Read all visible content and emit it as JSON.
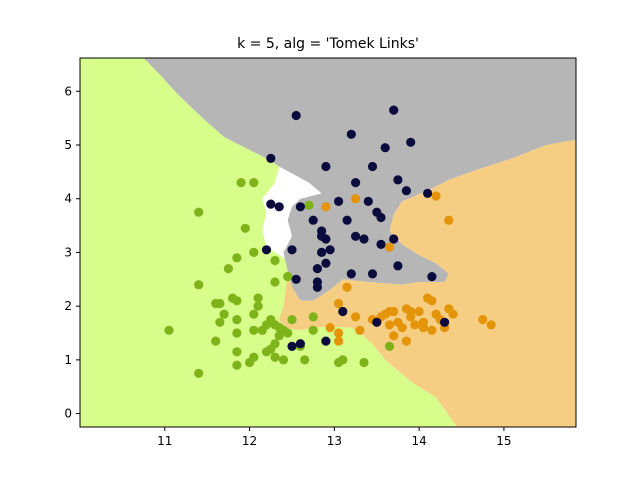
{
  "chart_data": {
    "type": "scatter",
    "title": "k = 5, alg = 'Tomek Links'",
    "xlabel": "",
    "ylabel": "",
    "xlim": [
      10.0,
      15.85
    ],
    "ylim": [
      -0.25,
      6.62
    ],
    "xticks": [
      11,
      12,
      13,
      14,
      15
    ],
    "yticks": [
      0,
      1,
      2,
      3,
      4,
      5,
      6
    ],
    "grid": false,
    "regions": [
      {
        "class": "green",
        "color": "#d7fd8b",
        "polygon": [
          [
            10.0,
            -0.25
          ],
          [
            14.45,
            -0.25
          ],
          [
            14.2,
            0.3
          ],
          [
            13.9,
            0.6
          ],
          [
            13.6,
            1.0
          ],
          [
            13.45,
            1.3
          ],
          [
            13.3,
            1.5
          ],
          [
            13.2,
            1.6
          ],
          [
            12.95,
            1.62
          ],
          [
            12.75,
            1.6
          ],
          [
            12.6,
            1.55
          ],
          [
            12.4,
            1.6
          ],
          [
            12.35,
            1.75
          ],
          [
            12.45,
            1.95
          ],
          [
            12.5,
            2.3
          ],
          [
            12.55,
            2.6
          ],
          [
            12.45,
            2.85
          ],
          [
            12.3,
            3.0
          ],
          [
            12.2,
            3.1
          ],
          [
            12.15,
            3.4
          ],
          [
            12.2,
            3.75
          ],
          [
            12.15,
            4.0
          ],
          [
            12.3,
            4.3
          ],
          [
            12.35,
            4.6
          ],
          [
            12.2,
            4.75
          ],
          [
            11.95,
            4.95
          ],
          [
            11.7,
            5.15
          ],
          [
            11.45,
            5.5
          ],
          [
            11.15,
            5.95
          ],
          [
            10.95,
            6.3
          ],
          [
            10.75,
            6.62
          ],
          [
            10.0,
            6.62
          ]
        ]
      },
      {
        "class": "gray",
        "color": "#b6b6b6",
        "polygon": [
          [
            10.75,
            6.62
          ],
          [
            15.85,
            6.62
          ],
          [
            15.85,
            5.1
          ],
          [
            15.5,
            5.0
          ],
          [
            15.1,
            4.75
          ],
          [
            14.7,
            4.55
          ],
          [
            14.35,
            4.35
          ],
          [
            14.1,
            4.15
          ],
          [
            13.8,
            3.95
          ],
          [
            13.7,
            3.7
          ],
          [
            13.65,
            3.4
          ],
          [
            13.8,
            3.15
          ],
          [
            14.0,
            2.95
          ],
          [
            14.2,
            2.8
          ],
          [
            14.35,
            2.6
          ],
          [
            14.3,
            2.45
          ],
          [
            14.0,
            2.45
          ],
          [
            13.8,
            2.4
          ],
          [
            13.4,
            2.45
          ],
          [
            13.1,
            2.5
          ],
          [
            12.95,
            2.3
          ],
          [
            12.75,
            2.1
          ],
          [
            12.6,
            2.1
          ],
          [
            12.5,
            2.35
          ],
          [
            12.45,
            2.65
          ],
          [
            12.4,
            3.0
          ],
          [
            12.5,
            3.3
          ],
          [
            12.45,
            3.6
          ],
          [
            12.5,
            3.85
          ],
          [
            12.6,
            4.0
          ],
          [
            12.85,
            4.1
          ],
          [
            12.7,
            4.3
          ],
          [
            12.35,
            4.6
          ],
          [
            12.2,
            4.75
          ],
          [
            11.95,
            4.95
          ],
          [
            11.7,
            5.15
          ],
          [
            11.45,
            5.5
          ],
          [
            11.15,
            5.95
          ],
          [
            10.95,
            6.3
          ]
        ]
      },
      {
        "class": "orange",
        "color": "#f6ce83",
        "polygon": [
          [
            14.45,
            -0.25
          ],
          [
            15.85,
            -0.25
          ],
          [
            15.85,
            5.1
          ],
          [
            15.5,
            5.0
          ],
          [
            15.1,
            4.75
          ],
          [
            14.7,
            4.55
          ],
          [
            14.35,
            4.35
          ],
          [
            14.1,
            4.15
          ],
          [
            13.8,
            3.95
          ],
          [
            13.7,
            3.7
          ],
          [
            13.65,
            3.4
          ],
          [
            13.8,
            3.15
          ],
          [
            14.0,
            2.95
          ],
          [
            14.2,
            2.8
          ],
          [
            14.35,
            2.6
          ],
          [
            14.3,
            2.45
          ],
          [
            14.0,
            2.45
          ],
          [
            13.8,
            2.4
          ],
          [
            13.4,
            2.45
          ],
          [
            13.1,
            2.5
          ],
          [
            12.95,
            2.3
          ],
          [
            12.75,
            2.1
          ],
          [
            12.6,
            2.1
          ],
          [
            12.5,
            2.35
          ],
          [
            12.45,
            2.6
          ],
          [
            12.4,
            2.0
          ],
          [
            12.35,
            1.75
          ],
          [
            12.4,
            1.6
          ],
          [
            12.6,
            1.55
          ],
          [
            12.75,
            1.6
          ],
          [
            12.95,
            1.62
          ],
          [
            13.2,
            1.6
          ],
          [
            13.3,
            1.5
          ],
          [
            13.45,
            1.3
          ],
          [
            13.6,
            1.0
          ],
          [
            13.9,
            0.6
          ],
          [
            14.2,
            0.3
          ]
        ]
      }
    ],
    "series": [
      {
        "class": "green",
        "color": "#7fb31a",
        "points": [
          [
            11.4,
            3.75
          ],
          [
            11.9,
            4.3
          ],
          [
            12.05,
            4.3
          ],
          [
            11.95,
            3.45
          ],
          [
            11.85,
            2.9
          ],
          [
            11.75,
            2.7
          ],
          [
            11.4,
            2.4
          ],
          [
            11.6,
            2.05
          ],
          [
            11.65,
            2.05
          ],
          [
            11.7,
            1.85
          ],
          [
            11.8,
            2.15
          ],
          [
            11.85,
            2.1
          ],
          [
            12.1,
            2.15
          ],
          [
            12.1,
            2.0
          ],
          [
            12.05,
            1.85
          ],
          [
            11.85,
            1.75
          ],
          [
            11.65,
            1.7
          ],
          [
            11.85,
            1.5
          ],
          [
            12.05,
            1.55
          ],
          [
            11.6,
            1.35
          ],
          [
            11.05,
            1.55
          ],
          [
            11.85,
            1.15
          ],
          [
            12.15,
            1.55
          ],
          [
            12.2,
            1.65
          ],
          [
            12.25,
            1.75
          ],
          [
            12.3,
            1.65
          ],
          [
            12.35,
            1.6
          ],
          [
            12.4,
            1.55
          ],
          [
            12.45,
            1.5
          ],
          [
            12.5,
            1.75
          ],
          [
            12.35,
            1.45
          ],
          [
            12.3,
            1.3
          ],
          [
            12.25,
            1.2
          ],
          [
            12.2,
            1.15
          ],
          [
            12.05,
            1.05
          ],
          [
            12.0,
            0.95
          ],
          [
            11.85,
            0.9
          ],
          [
            11.4,
            0.75
          ],
          [
            12.3,
            1.05
          ],
          [
            12.4,
            1.0
          ],
          [
            12.6,
            1.25
          ],
          [
            12.65,
            1.0
          ],
          [
            12.75,
            1.8
          ],
          [
            12.75,
            1.55
          ],
          [
            12.3,
            2.85
          ],
          [
            12.3,
            2.45
          ],
          [
            12.45,
            2.55
          ],
          [
            12.05,
            3.0
          ],
          [
            13.05,
            0.95
          ],
          [
            13.1,
            1.0
          ],
          [
            13.35,
            0.95
          ],
          [
            13.65,
            1.25
          ],
          [
            12.7,
            3.88
          ]
        ]
      },
      {
        "class": "orange",
        "color": "#e49408",
        "points": [
          [
            12.9,
            3.85
          ],
          [
            13.25,
            4.0
          ],
          [
            13.65,
            3.1
          ],
          [
            14.2,
            4.05
          ],
          [
            14.35,
            3.6
          ],
          [
            13.05,
            2.05
          ],
          [
            13.15,
            2.35
          ],
          [
            12.95,
            1.6
          ],
          [
            13.05,
            1.5
          ],
          [
            13.25,
            1.8
          ],
          [
            13.3,
            1.55
          ],
          [
            13.45,
            1.75
          ],
          [
            13.55,
            1.8
          ],
          [
            13.6,
            1.85
          ],
          [
            13.65,
            1.65
          ],
          [
            13.7,
            1.9
          ],
          [
            13.75,
            1.7
          ],
          [
            13.8,
            1.6
          ],
          [
            13.7,
            1.45
          ],
          [
            13.85,
            1.95
          ],
          [
            13.9,
            1.8
          ],
          [
            13.95,
            1.65
          ],
          [
            14.0,
            1.9
          ],
          [
            14.05,
            1.7
          ],
          [
            14.1,
            2.15
          ],
          [
            14.15,
            2.1
          ],
          [
            14.2,
            1.85
          ],
          [
            14.25,
            1.75
          ],
          [
            14.3,
            1.6
          ],
          [
            14.35,
            1.95
          ],
          [
            14.4,
            1.85
          ],
          [
            13.85,
            1.35
          ],
          [
            14.15,
            1.55
          ],
          [
            14.75,
            1.75
          ],
          [
            14.85,
            1.65
          ],
          [
            13.05,
            1.35
          ],
          [
            13.65,
            1.9
          ],
          [
            13.9,
            1.9
          ],
          [
            14.05,
            1.6
          ]
        ]
      },
      {
        "class": "navy",
        "color": "#0b0b3d",
        "points": [
          [
            12.55,
            5.55
          ],
          [
            13.7,
            5.65
          ],
          [
            13.2,
            5.2
          ],
          [
            13.9,
            5.05
          ],
          [
            13.6,
            4.95
          ],
          [
            12.25,
            4.75
          ],
          [
            12.9,
            4.6
          ],
          [
            13.45,
            4.6
          ],
          [
            13.75,
            4.35
          ],
          [
            13.25,
            4.3
          ],
          [
            13.85,
            4.15
          ],
          [
            14.1,
            4.1
          ],
          [
            12.25,
            3.9
          ],
          [
            12.35,
            3.85
          ],
          [
            12.6,
            3.85
          ],
          [
            13.05,
            3.95
          ],
          [
            13.4,
            3.95
          ],
          [
            13.5,
            3.75
          ],
          [
            13.55,
            3.65
          ],
          [
            12.75,
            3.6
          ],
          [
            13.15,
            3.6
          ],
          [
            12.85,
            3.4
          ],
          [
            12.9,
            3.25
          ],
          [
            12.85,
            3.3
          ],
          [
            13.25,
            3.3
          ],
          [
            13.35,
            3.25
          ],
          [
            13.55,
            3.15
          ],
          [
            13.7,
            3.25
          ],
          [
            12.2,
            3.05
          ],
          [
            12.5,
            3.05
          ],
          [
            12.85,
            3.0
          ],
          [
            12.95,
            3.05
          ],
          [
            12.9,
            2.8
          ],
          [
            12.8,
            2.7
          ],
          [
            13.2,
            2.6
          ],
          [
            13.45,
            2.6
          ],
          [
            13.75,
            2.75
          ],
          [
            12.55,
            2.5
          ],
          [
            12.8,
            2.45
          ],
          [
            12.8,
            2.35
          ],
          [
            14.15,
            2.55
          ],
          [
            13.1,
            1.9
          ],
          [
            13.5,
            1.7
          ],
          [
            14.3,
            1.7
          ],
          [
            12.6,
            1.3
          ],
          [
            12.5,
            1.25
          ],
          [
            12.9,
            1.35
          ]
        ]
      }
    ]
  }
}
